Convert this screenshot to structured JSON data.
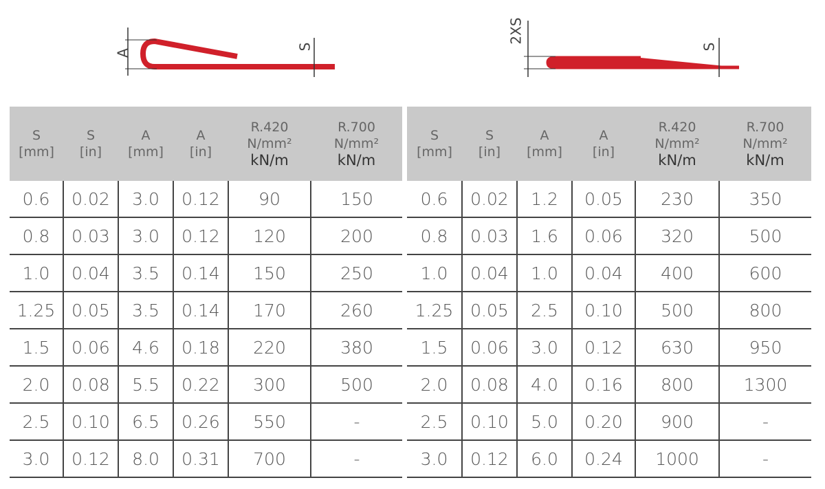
{
  "diagrams": [
    {
      "labels": [
        "A",
        "S"
      ]
    },
    {
      "labels": [
        "2XS",
        "S"
      ]
    }
  ],
  "tables": [
    {
      "header": [
        [
          "S",
          "[mm]"
        ],
        [
          "S",
          "[in]"
        ],
        [
          "A",
          "[mm]"
        ],
        [
          "A",
          "[in]"
        ],
        [
          "R.420",
          "N/mm²",
          "kN/m"
        ],
        [
          "R.700",
          "N/mm²",
          "kN/m"
        ]
      ],
      "rows": [
        [
          "0.6",
          "0.02",
          "3.0",
          "0.12",
          "90",
          "150"
        ],
        [
          "0.8",
          "0.03",
          "3.0",
          "0.12",
          "120",
          "200"
        ],
        [
          "1.0",
          "0.04",
          "3.5",
          "0.14",
          "150",
          "250"
        ],
        [
          "1.25",
          "0.05",
          "3.5",
          "0.14",
          "170",
          "260"
        ],
        [
          "1.5",
          "0.06",
          "4.6",
          "0.18",
          "220",
          "380"
        ],
        [
          "2.0",
          "0.08",
          "5.5",
          "0.22",
          "300",
          "500"
        ],
        [
          "2.5",
          "0.10",
          "6.5",
          "0.26",
          "550",
          "-"
        ],
        [
          "3.0",
          "0.12",
          "8.0",
          "0.31",
          "700",
          "-"
        ]
      ]
    },
    {
      "header": [
        [
          "S",
          "[mm]"
        ],
        [
          "S",
          "[in]"
        ],
        [
          "A",
          "[mm]"
        ],
        [
          "A",
          "[in]"
        ],
        [
          "R.420",
          "N/mm²",
          "kN/m"
        ],
        [
          "R.700",
          "N/mm²",
          "kN/m"
        ]
      ],
      "rows": [
        [
          "0.6",
          "0.02",
          "1.2",
          "0.05",
          "230",
          "350"
        ],
        [
          "0.8",
          "0.03",
          "1.6",
          "0.06",
          "320",
          "500"
        ],
        [
          "1.0",
          "0.04",
          "1.0",
          "0.04",
          "400",
          "600"
        ],
        [
          "1.25",
          "0.05",
          "2.5",
          "0.10",
          "500",
          "800"
        ],
        [
          "1.5",
          "0.06",
          "3.0",
          "0.12",
          "630",
          "950"
        ],
        [
          "2.0",
          "0.08",
          "4.0",
          "0.16",
          "800",
          "1300"
        ],
        [
          "2.5",
          "0.10",
          "5.0",
          "0.20",
          "900",
          "-"
        ],
        [
          "3.0",
          "0.12",
          "6.0",
          "0.24",
          "1000",
          "-"
        ]
      ]
    }
  ]
}
